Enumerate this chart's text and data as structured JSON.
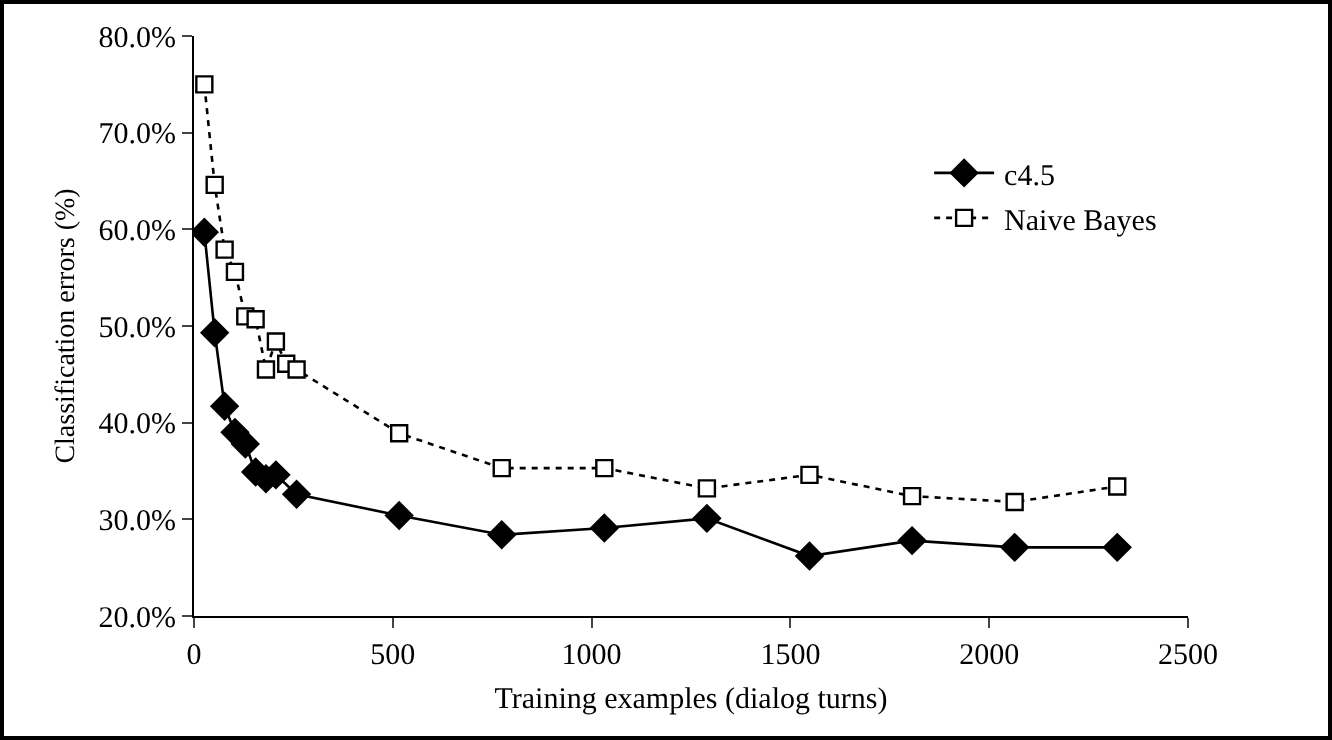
{
  "chart_data": {
    "type": "line",
    "xlabel": "Training examples (dialog turns)",
    "ylabel": "Classification errors (%)",
    "xlim": [
      0,
      2500
    ],
    "xticks": [
      0,
      500,
      1000,
      1500,
      2000,
      2500
    ],
    "ylim": [
      20,
      80
    ],
    "yticks": [
      {
        "value": 20,
        "label": "20.0%"
      },
      {
        "value": 30,
        "label": "30.0%"
      },
      {
        "value": 40,
        "label": "40.0%"
      },
      {
        "value": 50,
        "label": "50.0%"
      },
      {
        "value": 60,
        "label": "60.0%"
      },
      {
        "value": 70,
        "label": "70.0%"
      },
      {
        "value": 80,
        "label": "80.0%"
      }
    ],
    "grid": false,
    "legend": "top right",
    "series": [
      {
        "name": "c4.5",
        "color": "#000000",
        "marker": "diamond",
        "line_style": "solid",
        "x": [
          26,
          52,
          77,
          103,
          129,
          155,
          181,
          206,
          258,
          516,
          774,
          1032,
          1290,
          1548,
          1806,
          2064,
          2322
        ],
        "values": [
          59.7,
          49.3,
          41.7,
          39.0,
          37.8,
          34.9,
          34.2,
          34.6,
          32.6,
          30.4,
          28.4,
          29.1,
          30.1,
          26.2,
          27.8,
          27.1,
          27.1
        ]
      },
      {
        "name": "Naive Bayes",
        "color": "#000000",
        "marker": "square",
        "line_style": "dotted",
        "x": [
          26,
          52,
          77,
          103,
          129,
          155,
          181,
          206,
          232,
          258,
          516,
          774,
          1032,
          1290,
          1548,
          1806,
          2064,
          2322
        ],
        "values": [
          75.0,
          64.6,
          57.9,
          55.6,
          51.0,
          50.7,
          45.5,
          48.4,
          46.1,
          45.5,
          38.9,
          35.3,
          35.3,
          33.2,
          34.6,
          32.4,
          31.8,
          33.4
        ]
      }
    ]
  }
}
